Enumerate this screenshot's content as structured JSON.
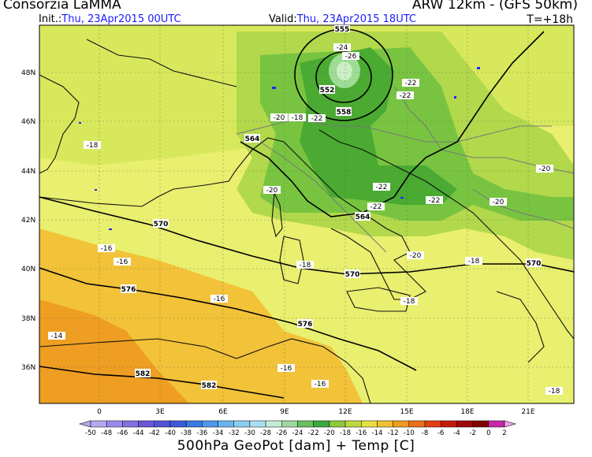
{
  "header": {
    "title": "Consorzia LaMMA",
    "model": "ARW 12km - (GFS 50km)",
    "init_label": "Init.:",
    "init_value": "Thu, 23Apr2015 00UTC",
    "valid_label": "Valid:",
    "valid_value": "Thu, 23Apr2015 18UTC",
    "forecast_step": "T=+18h"
  },
  "map": {
    "lat_ticks": [
      "48N",
      "46N",
      "44N",
      "42N",
      "40N",
      "38N",
      "36N"
    ],
    "lon_ticks": [
      "0",
      "3E",
      "6E",
      "9E",
      "12E",
      "15E",
      "18E",
      "21E"
    ],
    "geopotential_labels": [
      "552",
      "558",
      "564",
      "564",
      "570",
      "570",
      "570",
      "576",
      "576",
      "582",
      "582",
      "555"
    ],
    "temperature_labels": [
      "-24",
      "-26",
      "-22",
      "-22",
      "-20",
      "-22",
      "-18",
      "-20",
      "-22",
      "-22",
      "-22",
      "-20",
      "-20",
      "-18",
      "-16",
      "-16",
      "-18",
      "-20",
      "-16",
      "-18",
      "-14",
      "-16",
      "-16",
      "-18",
      "-18"
    ],
    "colors": {
      "sea_light": "#e8f070",
      "land_yellow": "#d4e65a",
      "green_light": "#a0d248",
      "green_mid": "#58b838",
      "green_dark": "#2ea02a",
      "orange_light": "#f4c430",
      "orange": "#eea020",
      "contour": "#000000",
      "coast": "#111111",
      "border": "#808080",
      "rivers": "#2222ff"
    }
  },
  "colorbar": {
    "values": [
      "-50",
      "-48",
      "-46",
      "-44",
      "-42",
      "-40",
      "-38",
      "-36",
      "-34",
      "-32",
      "-30",
      "-28",
      "-26",
      "-24",
      "-22",
      "-20",
      "-18",
      "-16",
      "-14",
      "-12",
      "-10",
      "-8",
      "-6",
      "-4",
      "-2",
      "0",
      "2"
    ],
    "colors": [
      "#b3a8f0",
      "#9a8ae8",
      "#8470e0",
      "#6c56d8",
      "#5650d8",
      "#3c5ad8",
      "#3a7ae4",
      "#4c98ec",
      "#6cb4f0",
      "#8ccdf0",
      "#aadff0",
      "#c4ecd8",
      "#9cd8a0",
      "#68c060",
      "#3aa83a",
      "#8cc83c",
      "#c0d840",
      "#e8e040",
      "#f0c030",
      "#f09a20",
      "#e87018",
      "#e04010",
      "#c81808",
      "#a00808",
      "#800000",
      "#c828a8"
    ]
  },
  "footer": {
    "caption": "500hPa GeoPot [dam] + Temp [C]"
  }
}
